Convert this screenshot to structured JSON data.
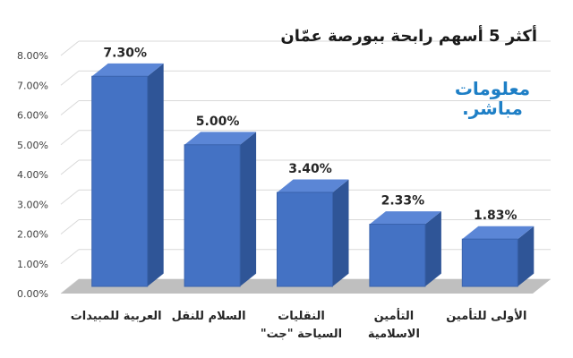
{
  "title": "أكثر 5 أسهم رابحة ببورصة عمّان",
  "logo": {
    "line1": "معلومات",
    "line2": "مباشر."
  },
  "chart_data": {
    "type": "bar",
    "categories": [
      [
        "العربية للمبيدات"
      ],
      [
        "السلام للنقل"
      ],
      [
        "النقليات",
        "السياحة \"جت\""
      ],
      [
        "التأمين",
        "الاسلامية"
      ],
      [
        "الأولى للتأمين"
      ]
    ],
    "values": [
      7.3,
      5.0,
      3.4,
      2.33,
      1.83
    ],
    "value_labels": [
      "7.30%",
      "5.00%",
      "3.40%",
      "2.33%",
      "1.83%"
    ],
    "yticks": [
      "0.00%",
      "1.00%",
      "2.00%",
      "3.00%",
      "4.00%",
      "5.00%",
      "6.00%",
      "7.00%",
      "8.00%"
    ],
    "ylim": [
      0,
      8
    ],
    "grid": true,
    "colors": {
      "bar_front": "#4472c4",
      "bar_side": "#2f5597",
      "bar_top": "#5b86d6",
      "floor": "#bfbfbf",
      "grid": "#d9d9d9"
    }
  }
}
